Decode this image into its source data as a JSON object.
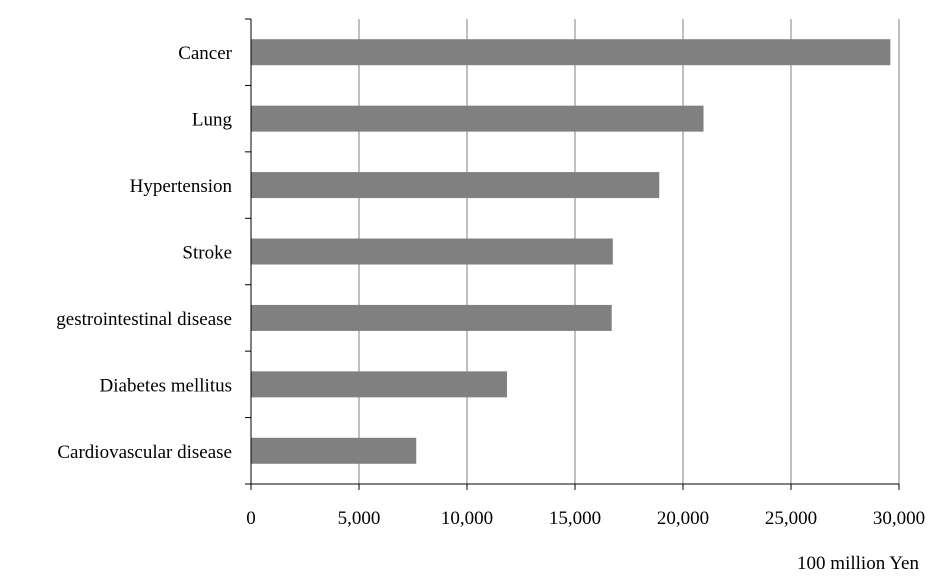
{
  "chart_data": {
    "type": "bar",
    "orientation": "horizontal",
    "categories": [
      "Cancer",
      "Lung",
      "Hypertension",
      "Stroke",
      "gestrointestinal disease",
      "Diabetes mellitus",
      "Cardiovascular disease"
    ],
    "values": [
      29600,
      20950,
      18900,
      16750,
      16700,
      11850,
      7650
    ],
    "xlim": [
      0,
      30000
    ],
    "xticks": [
      "0",
      "5,000",
      "10,000",
      "15,000",
      "20,000",
      "25,000",
      "30,000"
    ],
    "xlabel": "100 million Yen",
    "grid": "vertical",
    "bar_color": "#808080"
  }
}
